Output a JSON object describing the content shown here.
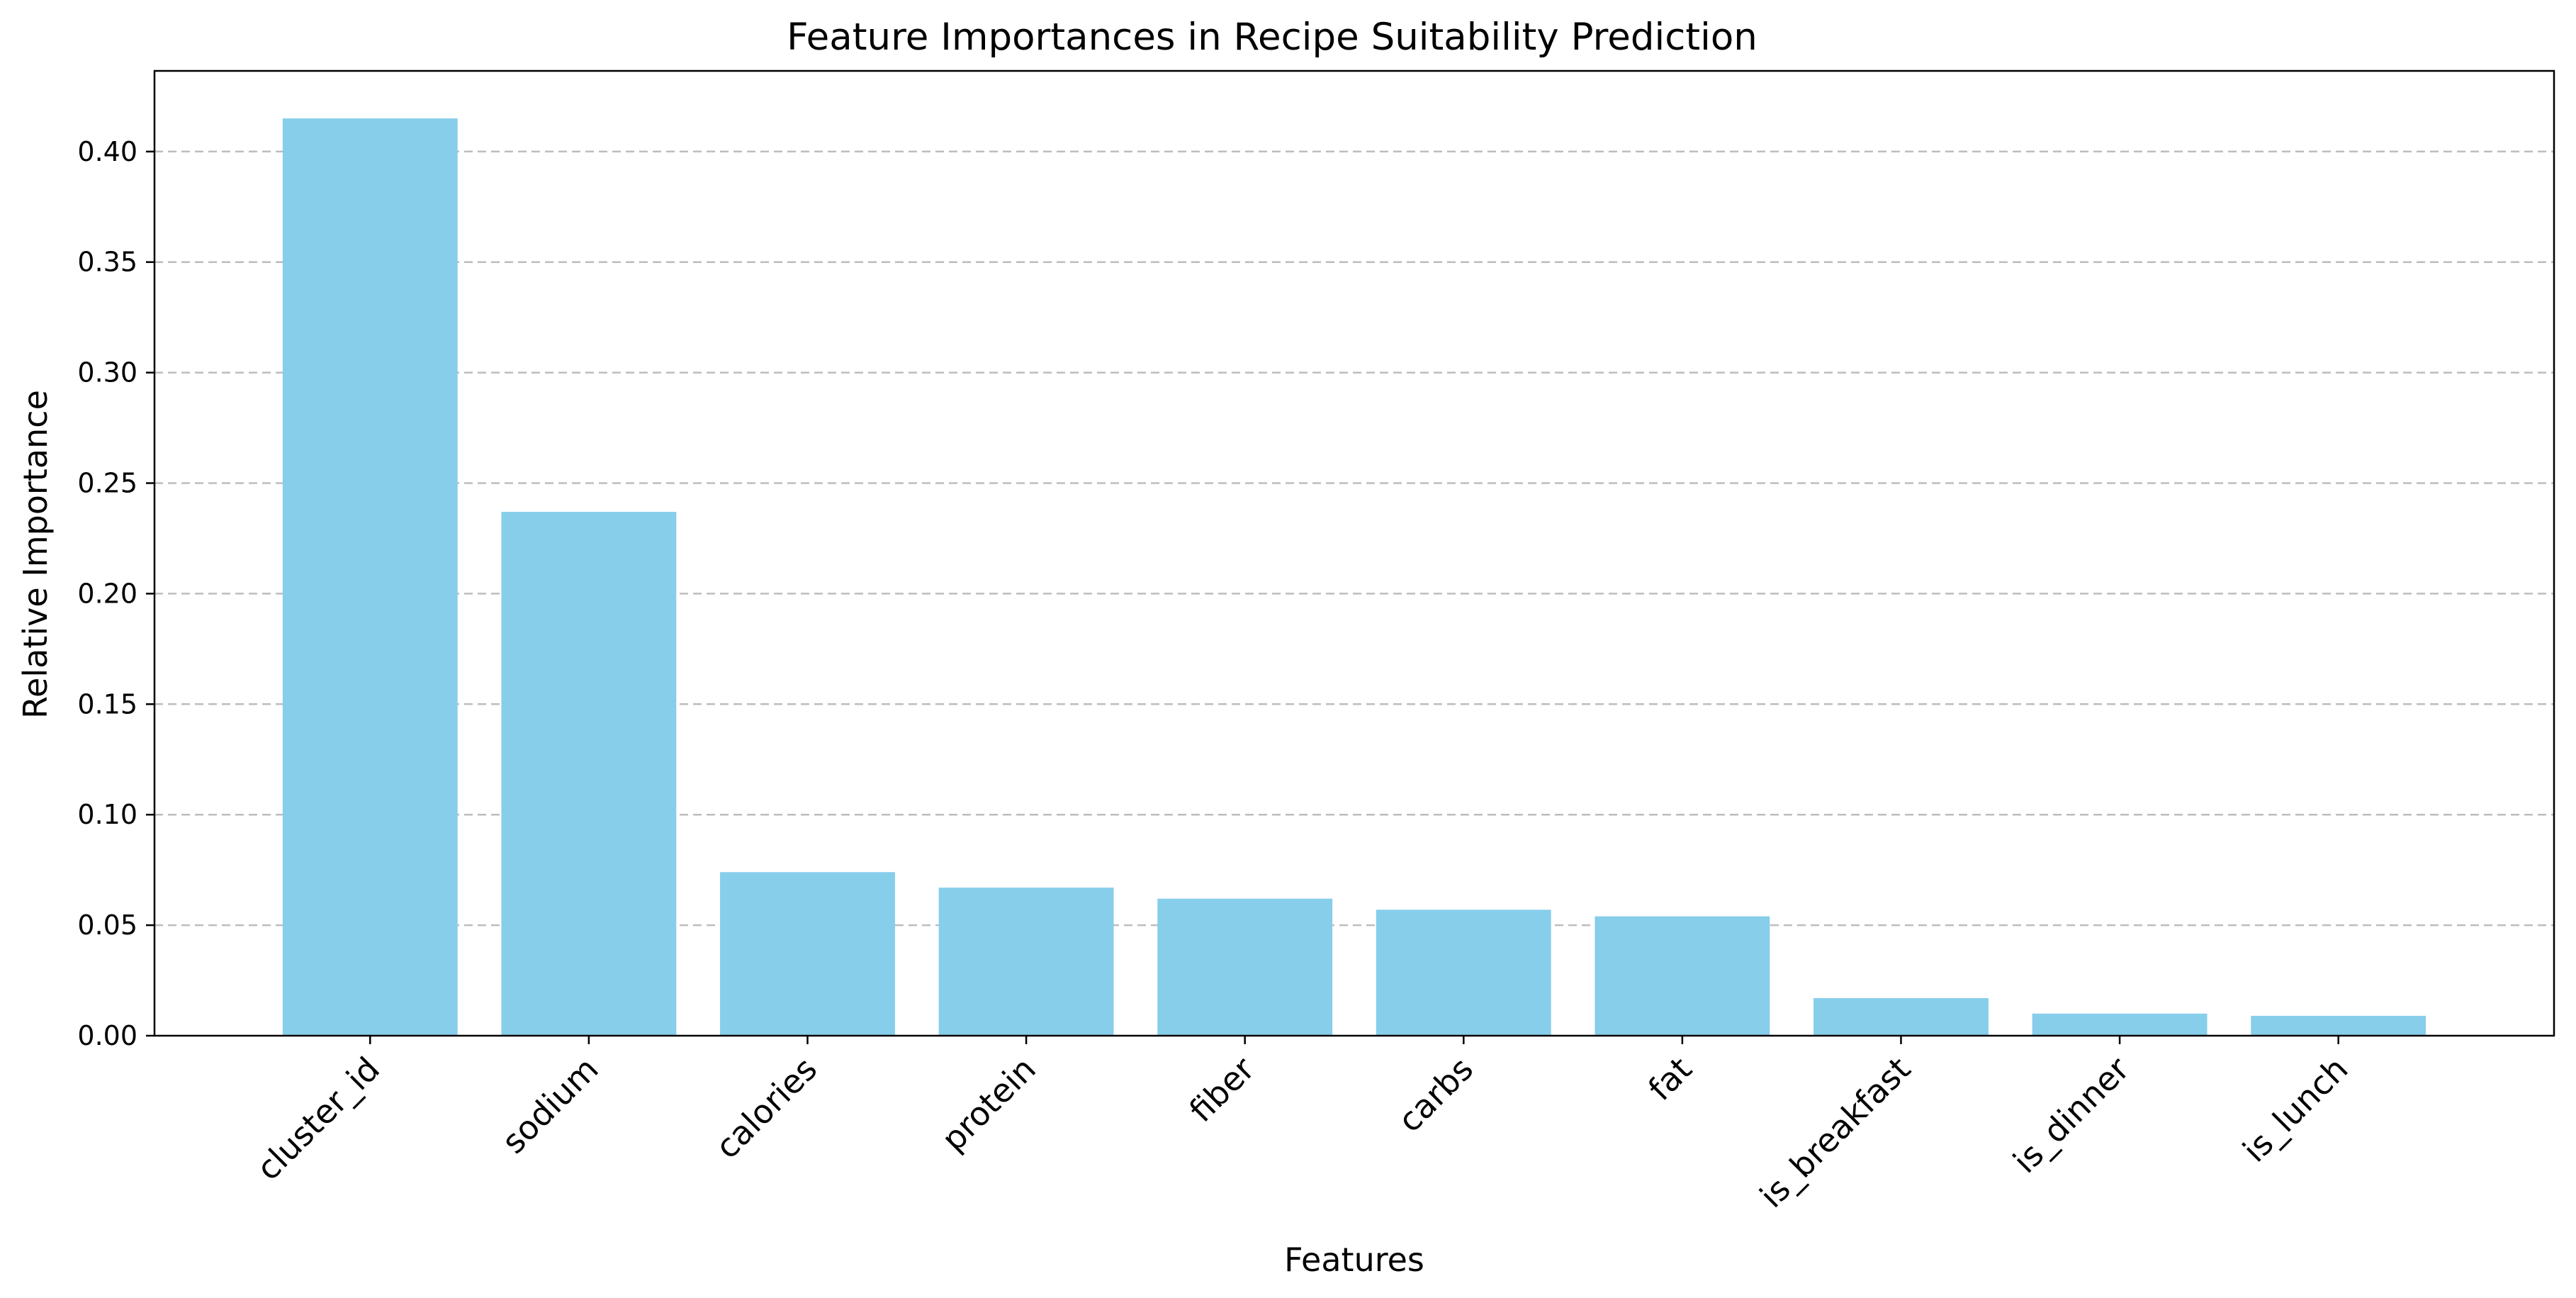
{
  "chart_data": {
    "type": "bar",
    "title": "Feature Importances in Recipe Suitability Prediction",
    "xlabel": "Features",
    "ylabel": "Relative Importance",
    "categories": [
      "cluster_id",
      "sodium",
      "calories",
      "protein",
      "fiber",
      "carbs",
      "fat",
      "is_breakfast",
      "is_dinner",
      "is_lunch"
    ],
    "values": [
      0.415,
      0.237,
      0.074,
      0.067,
      0.062,
      0.057,
      0.054,
      0.017,
      0.01,
      0.009
    ],
    "ylim": [
      0,
      0.4365
    ],
    "yticks": [
      "0.00",
      "0.05",
      "0.10",
      "0.15",
      "0.20",
      "0.25",
      "0.30",
      "0.35",
      "0.40"
    ],
    "grid": "y-dashed",
    "bar_color": "#87CEEB",
    "grid_color": "#bdbdbd"
  }
}
